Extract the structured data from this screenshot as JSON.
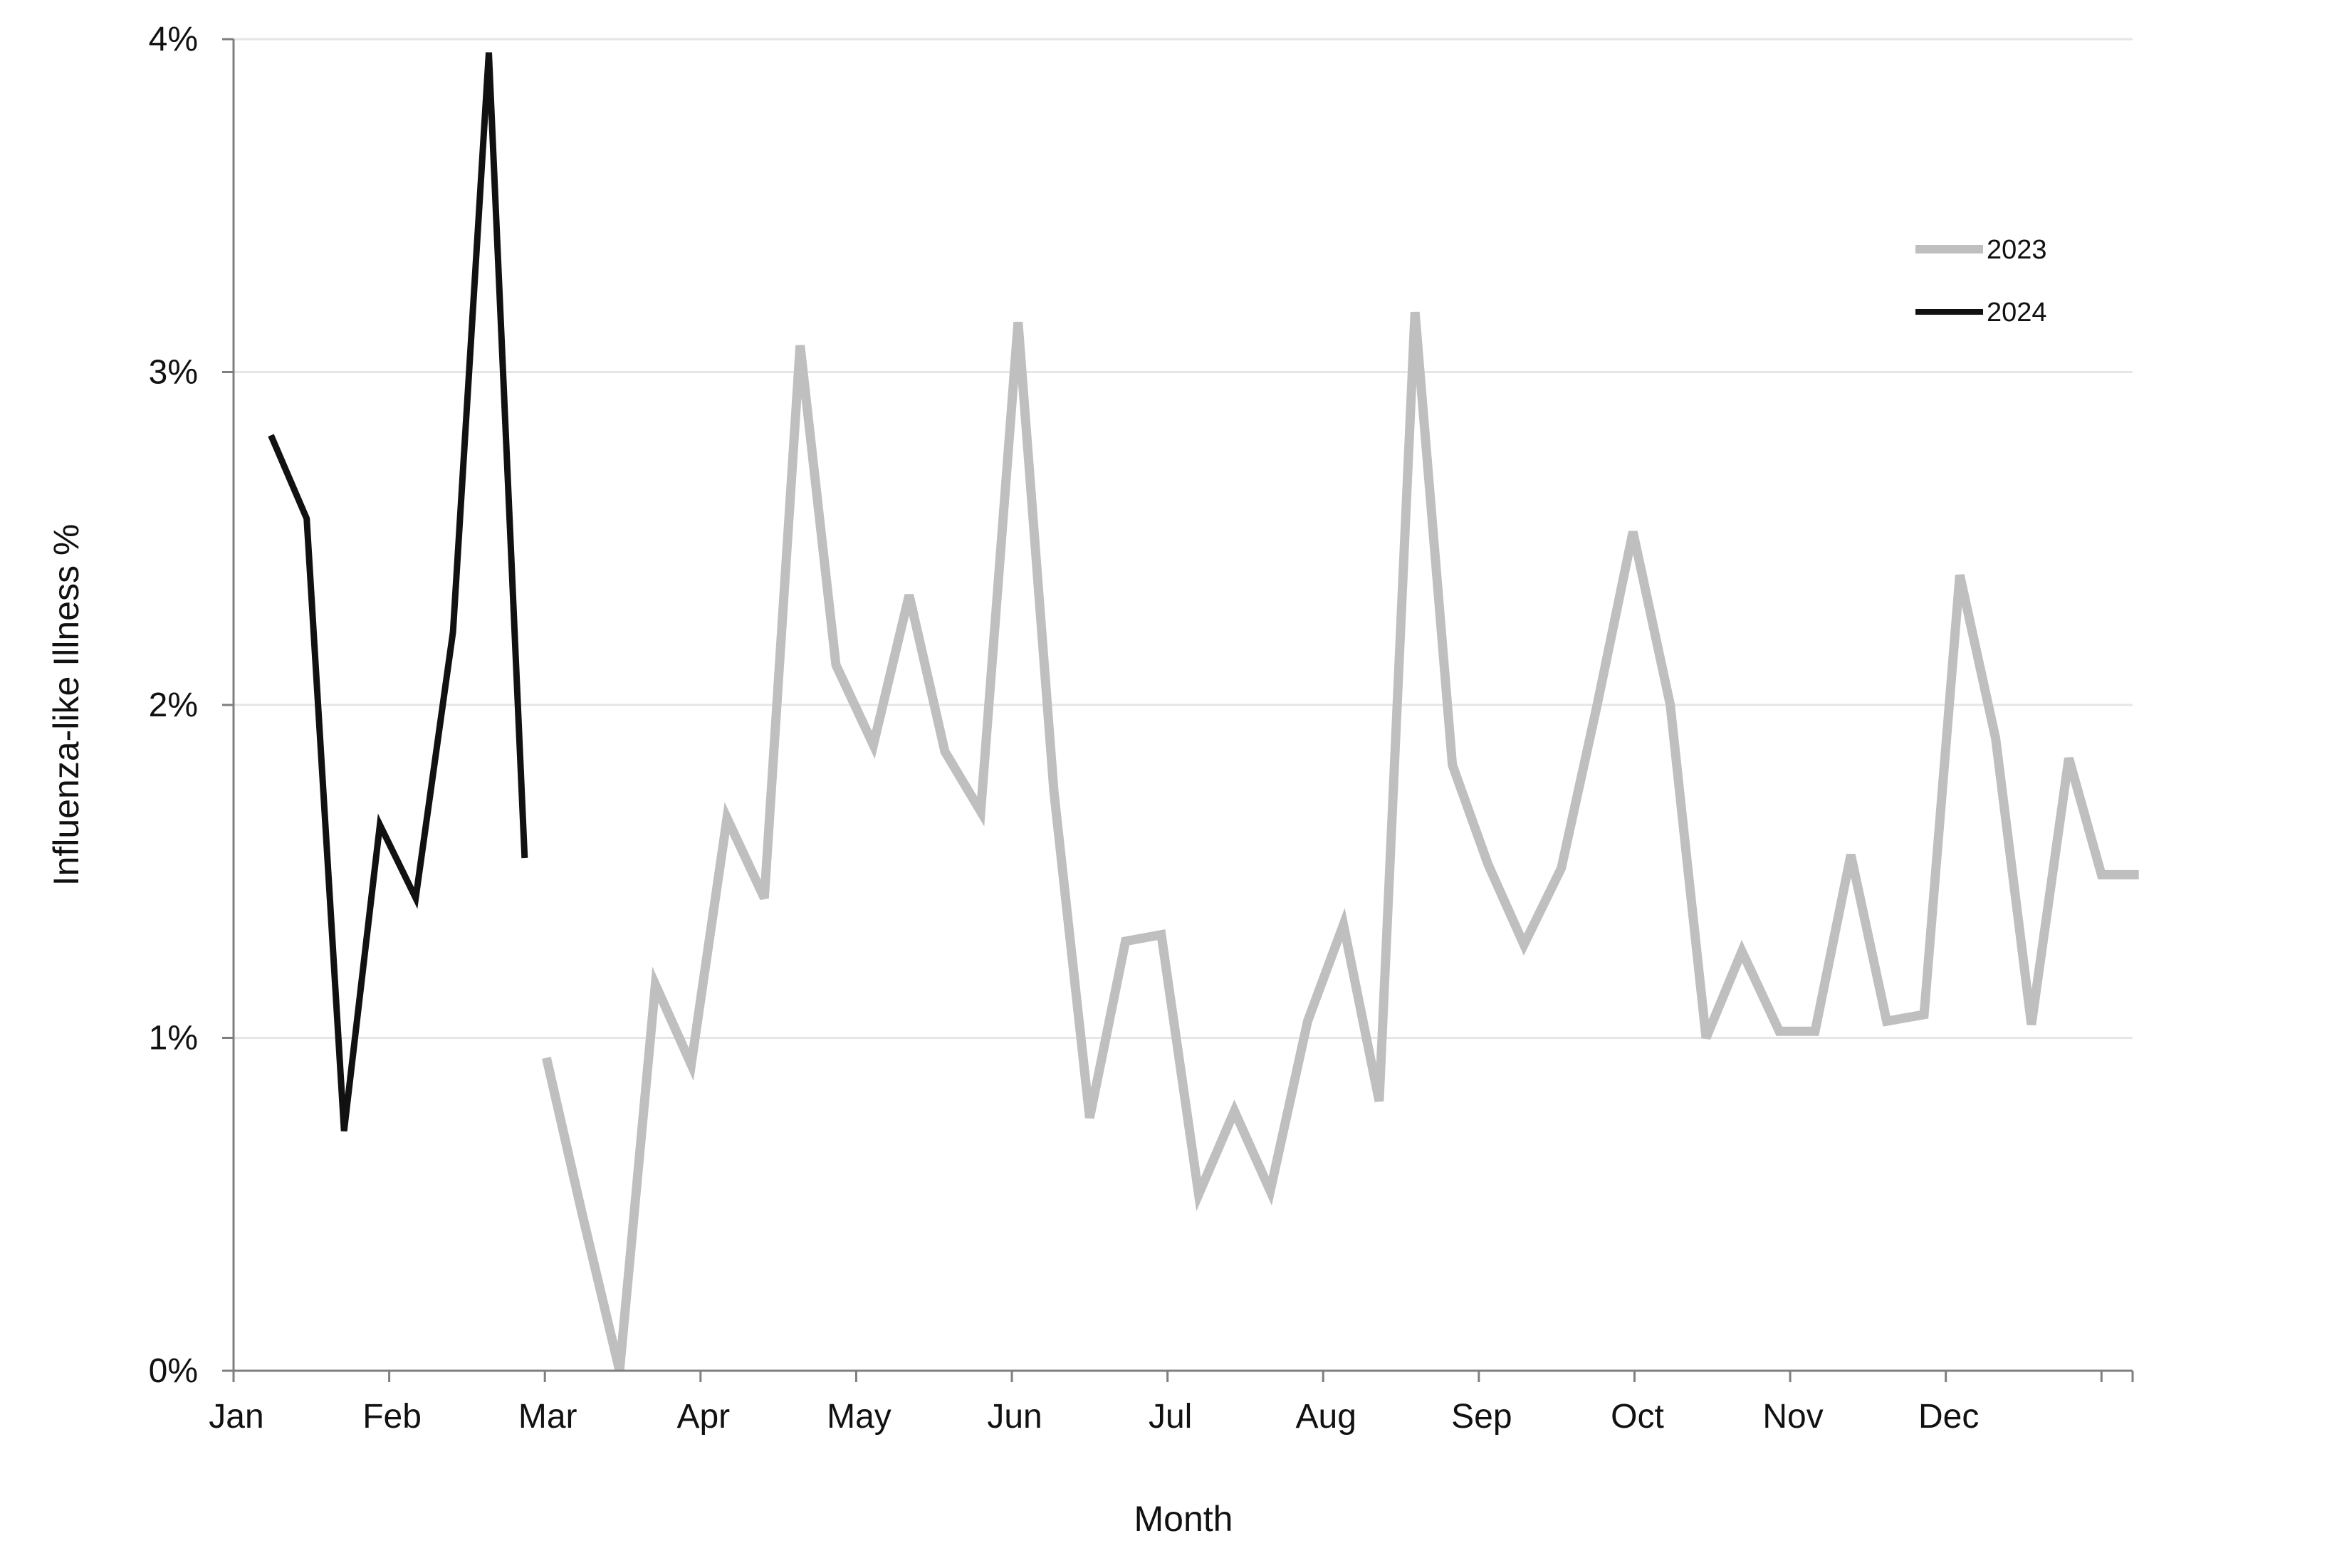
{
  "chart_data": {
    "type": "line",
    "title": "",
    "xlabel": "Month",
    "ylabel": "Influenza-like Illness %",
    "x_ticks": [
      "Jan",
      "Feb",
      "Mar",
      "Apr",
      "May",
      "Jun",
      "Jul",
      "Aug",
      "Sep",
      "Oct",
      "Nov",
      "Dec"
    ],
    "y_ticks": [
      "0%",
      "1%",
      "2%",
      "3%",
      "4%"
    ],
    "xlim": [
      0,
      12.2
    ],
    "ylim": [
      0,
      4
    ],
    "grid": "horizontal",
    "legend_position": "top-right",
    "series": [
      {
        "name": "2023",
        "color": "#bfbfbf",
        "x": [
          2.01,
          2.24,
          2.48,
          2.71,
          2.94,
          3.17,
          3.41,
          3.64,
          3.87,
          4.11,
          4.34,
          4.57,
          4.8,
          5.04,
          5.27,
          5.5,
          5.73,
          5.96,
          6.2,
          6.43,
          6.66,
          6.9,
          7.13,
          7.36,
          7.59,
          7.83,
          8.06,
          8.29,
          8.53,
          8.76,
          8.99,
          9.23,
          9.46,
          9.69,
          9.93,
          10.16,
          10.39,
          10.62,
          10.86,
          11.09,
          11.32,
          11.55,
          11.79,
          12.0,
          12.24
        ],
        "values": [
          0.94,
          0.47,
          0.0,
          1.16,
          0.92,
          1.66,
          1.42,
          3.08,
          2.12,
          1.88,
          2.33,
          1.86,
          1.68,
          3.15,
          1.74,
          0.76,
          1.29,
          1.31,
          0.53,
          0.78,
          0.54,
          1.05,
          1.34,
          0.81,
          3.18,
          1.82,
          1.52,
          1.28,
          1.51,
          2.0,
          2.52,
          2.0,
          1.0,
          1.26,
          1.02,
          1.02,
          1.55,
          1.05,
          1.07,
          2.39,
          1.9,
          1.04,
          1.84,
          1.49,
          1.49
        ]
      },
      {
        "name": "2024",
        "color": "#111111",
        "x": [
          0.24,
          0.47,
          0.71,
          0.94,
          1.17,
          1.41,
          1.64,
          1.87
        ],
        "values": [
          2.81,
          2.56,
          0.72,
          1.64,
          1.42,
          2.22,
          3.96,
          1.54
        ]
      }
    ]
  }
}
